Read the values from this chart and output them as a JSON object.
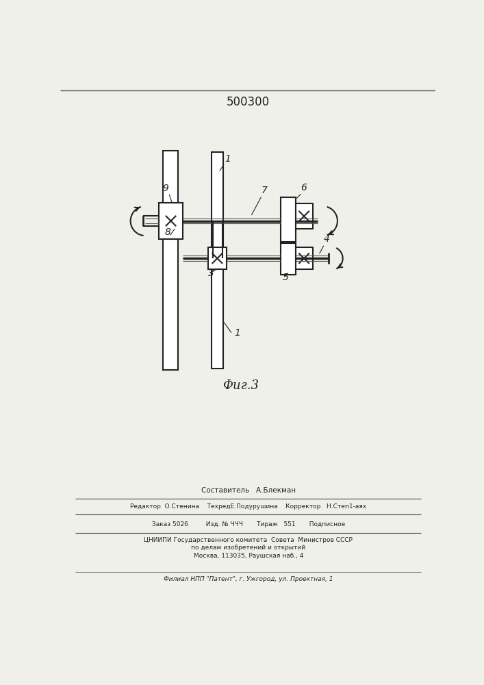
{
  "patent_number": "500300",
  "fig_caption": "Фиг.3",
  "background_color": "#f0f0eb",
  "line_color": "#222222",
  "footer_lines": [
    "Составитель   А.Блекман",
    "Редактор  О.Стенина    ТехредЕ.Подурушина    Корректор   Н.Степ1-аях",
    "Заказ 5026         Изд. № ЧЧЧ       Тираж   551       Подписное",
    "ЦНИИПИ Государственного комитета  Совета  Министров СССР",
    "по делам изобретений и открытий",
    "Москва, 113035, Раушская наб., 4",
    "Филиал НПП \"Патент\", г. Ужгород, ул. Проектная, 1"
  ]
}
